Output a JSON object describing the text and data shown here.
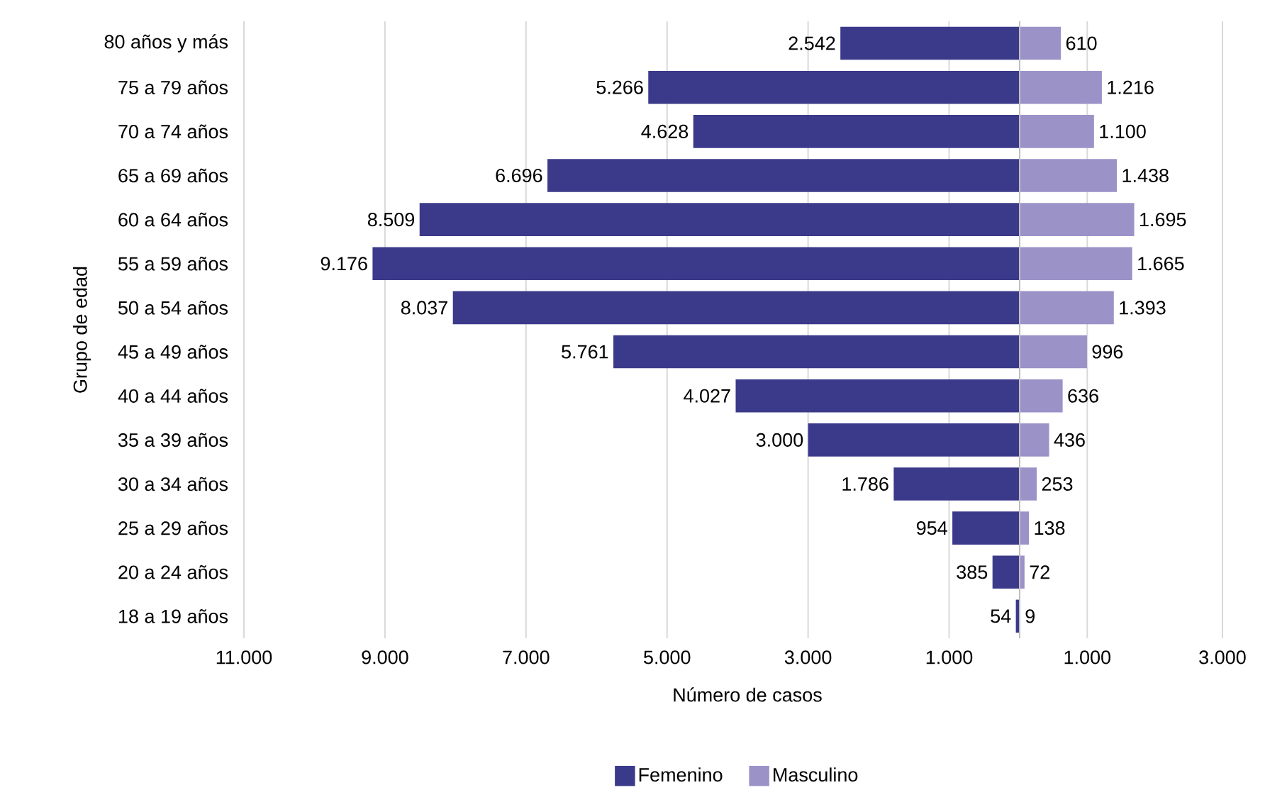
{
  "chart_data": [
    {
      "type": "bar",
      "orientation": "horizontal",
      "xlabel": "Número de casos",
      "ylabel": "Grupo de edad",
      "categories": [
        "80 años y más",
        "75 a 79 años",
        "70 a 74 años",
        "65 a 69 años",
        "60 a 64 años",
        "55 a 59 años",
        "50 a 54 años",
        "45 a 49 años",
        "40 a 44 años",
        "35 a 39 años",
        "30 a 34 años",
        "25 a 29 años",
        "20 a 24 años",
        "18 a 19 años"
      ],
      "series": [
        {
          "name": "Femenino",
          "color": "#3b3a8a",
          "values": [
            2542,
            5266,
            4628,
            6696,
            8509,
            9176,
            8037,
            5761,
            4027,
            3000,
            1786,
            954,
            385,
            54
          ],
          "value_labels": [
            "2.542",
            "5.266",
            "4.628",
            "6.696",
            "8.509",
            "9.176",
            "8.037",
            "5.761",
            "4.027",
            "3.000",
            "1.786",
            "954",
            "385",
            "54"
          ]
        }
      ],
      "xlim": [
        11000,
        0
      ],
      "xticks": [
        {
          "value": 11000,
          "label": "11.000"
        },
        {
          "value": 9000,
          "label": "9.000"
        },
        {
          "value": 7000,
          "label": "7.000"
        },
        {
          "value": 5000,
          "label": "5.000"
        },
        {
          "value": 3000,
          "label": "3.000"
        },
        {
          "value": 1000,
          "label": "1.000"
        }
      ],
      "grid": "x",
      "legend": "bottom"
    },
    {
      "type": "bar",
      "orientation": "horizontal",
      "categories": [
        null,
        null,
        null,
        null,
        null,
        null,
        null,
        null,
        null,
        null,
        null,
        null,
        null,
        null
      ],
      "series": [
        {
          "name": "Masculino",
          "color": "#9b92c8",
          "values": [
            610,
            1216,
            1100,
            1438,
            1695,
            1665,
            1393,
            996,
            636,
            436,
            253,
            138,
            72,
            9
          ],
          "value_labels": [
            "610",
            "1.216",
            "1.100",
            "1.438",
            "1.695",
            "1.665",
            "1.393",
            "996",
            "636",
            "436",
            "253",
            "138",
            "72",
            "9"
          ]
        }
      ],
      "xlim": [
        0,
        3000
      ],
      "xticks": [
        {
          "value": 1000,
          "label": "1.000"
        },
        {
          "value": 3000,
          "label": "3.000"
        }
      ],
      "grid": "x",
      "legend": "bottom",
      "tick_labels": "x"
    }
  ]
}
